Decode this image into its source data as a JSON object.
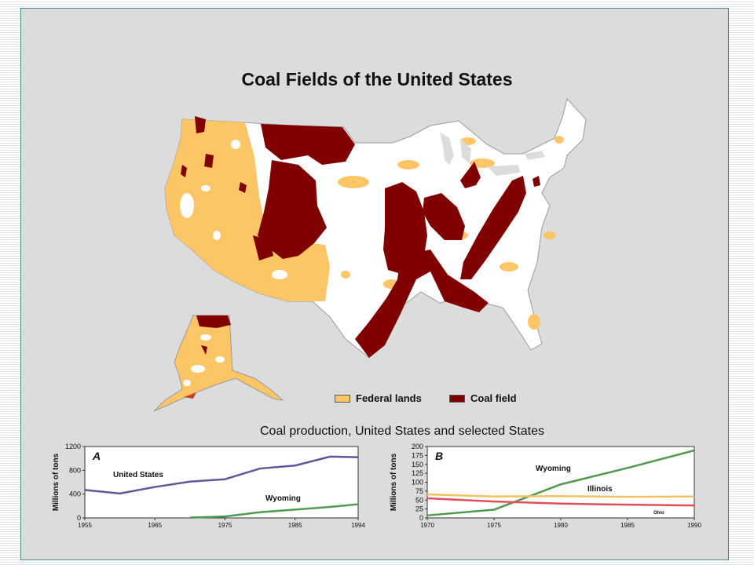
{
  "map": {
    "title": "Coal Fields of the United States",
    "legend": [
      {
        "label": "Federal lands",
        "color": "#fcc566"
      },
      {
        "label": "Coal field",
        "color": "#800000"
      }
    ]
  },
  "charts_title": "Coal production, United States and selected States",
  "chart_data": [
    {
      "type": "line",
      "panel_label": "A",
      "xlabel": "",
      "ylabel": "Millions of tons",
      "x_ticks": [
        1955,
        1965,
        1975,
        1985,
        1994
      ],
      "y_ticks": [
        0,
        400,
        800,
        1200
      ],
      "xlim": [
        1955,
        1994
      ],
      "ylim": [
        0,
        1200
      ],
      "grid": false,
      "series": [
        {
          "name": "United States",
          "color": "#5a5a9a",
          "x": [
            1955,
            1960,
            1965,
            1970,
            1975,
            1980,
            1985,
            1990,
            1994
          ],
          "y": [
            470,
            410,
            520,
            610,
            650,
            830,
            880,
            1030,
            1020
          ]
        },
        {
          "name": "Wyoming",
          "color": "#4e9a4e",
          "x": [
            1970,
            1975,
            1980,
            1985,
            1990,
            1994
          ],
          "y": [
            5,
            25,
            95,
            140,
            185,
            230
          ]
        }
      ]
    },
    {
      "type": "line",
      "panel_label": "B",
      "xlabel": "",
      "ylabel": "Millions of tons",
      "x_ticks": [
        1970,
        1975,
        1980,
        1985,
        1990
      ],
      "y_ticks": [
        0,
        25,
        50,
        75,
        100,
        125,
        150,
        175,
        200
      ],
      "xlim": [
        1970,
        1990
      ],
      "ylim": [
        0,
        200
      ],
      "grid": false,
      "series": [
        {
          "name": "Wyoming",
          "color": "#4e9a4e",
          "x": [
            1970,
            1975,
            1980,
            1985,
            1990
          ],
          "y": [
            7,
            23,
            94,
            140,
            189
          ]
        },
        {
          "name": "Illinois",
          "color": "#f2c25f",
          "x": [
            1970,
            1975,
            1980,
            1985,
            1990
          ],
          "y": [
            66,
            60,
            61,
            59,
            60
          ]
        },
        {
          "name": "Ohio",
          "color": "#e0505a",
          "x": [
            1970,
            1975,
            1980,
            1985,
            1990
          ],
          "y": [
            55,
            46,
            40,
            37,
            35
          ]
        }
      ]
    }
  ]
}
